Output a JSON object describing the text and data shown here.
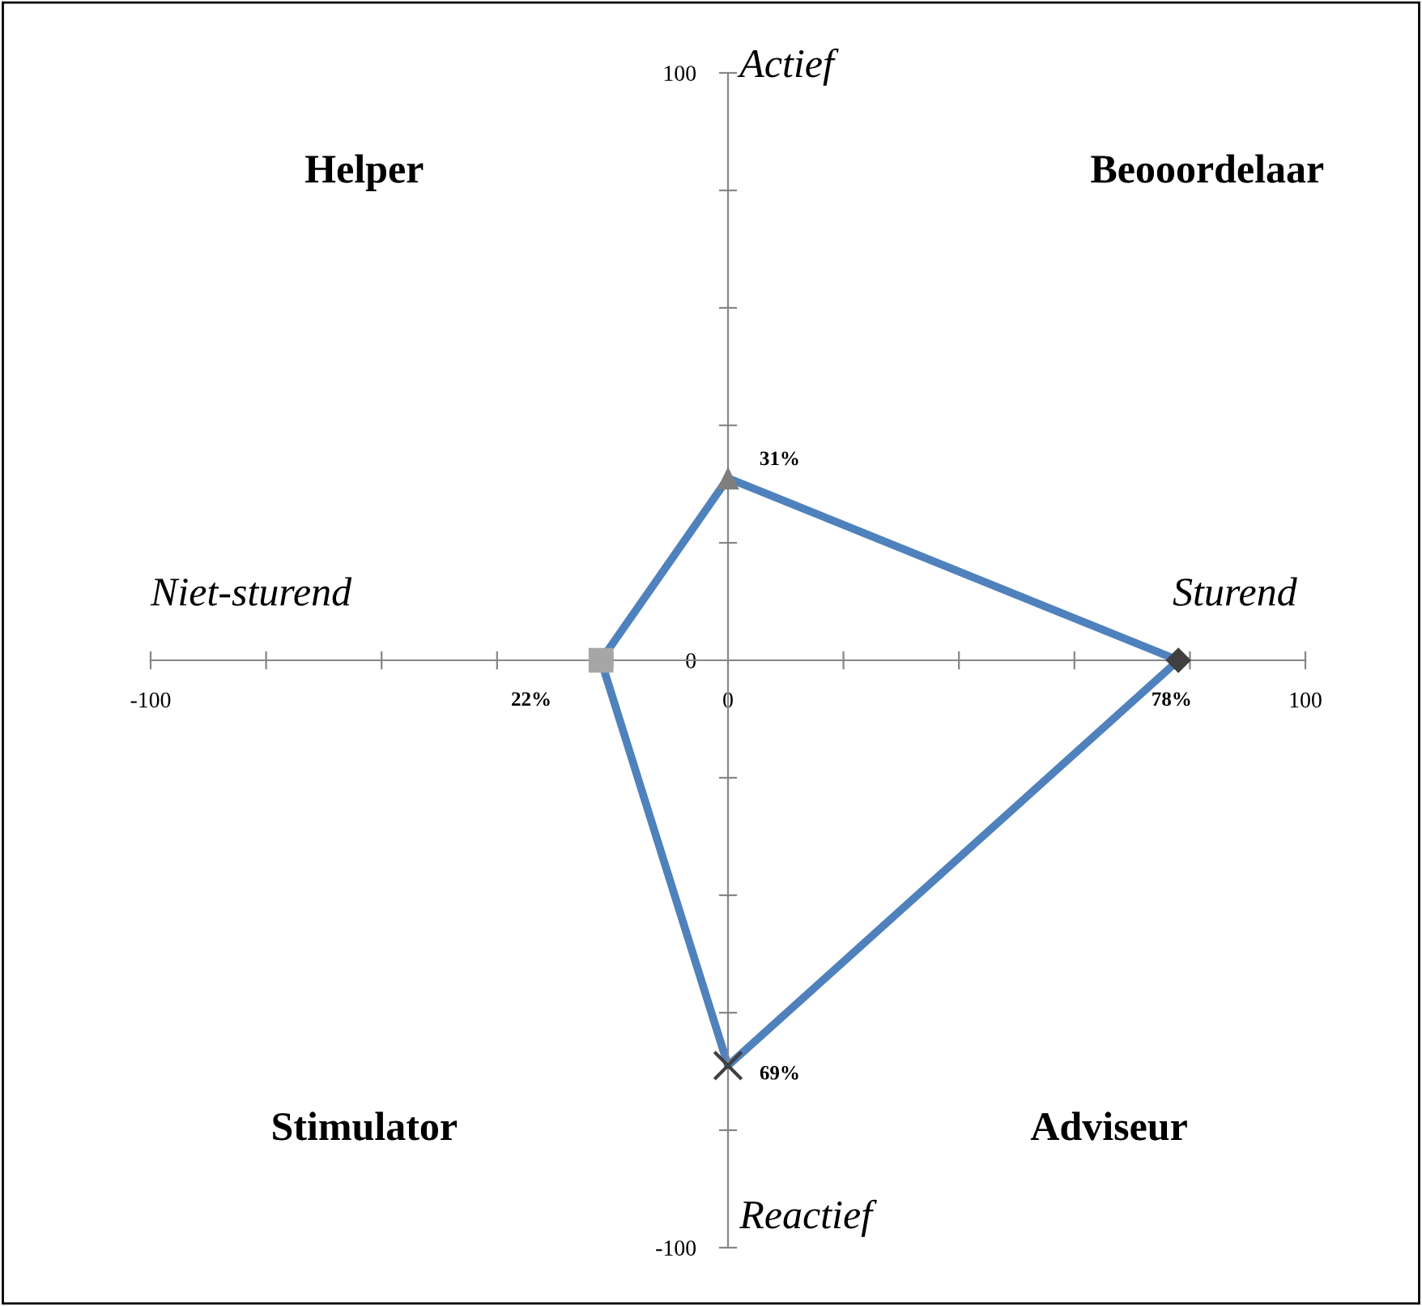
{
  "chart_data": {
    "type": "scatter",
    "xlim": [
      -100,
      100
    ],
    "ylim": [
      -100,
      100
    ],
    "xticks": [
      -100,
      {
        "value": -80,
        "label": null
      },
      {
        "value": -60,
        "label": null
      },
      {
        "value": -40,
        "label": null
      },
      {
        "value": -20,
        "label": null
      },
      0,
      {
        "value": 20,
        "label": null
      },
      {
        "value": 40,
        "label": null
      },
      {
        "value": 60,
        "label": null
      },
      {
        "value": 80,
        "label": null
      },
      100
    ],
    "yticks": [
      -100,
      {
        "value": -80,
        "label": null
      },
      {
        "value": -60,
        "label": null
      },
      {
        "value": -40,
        "label": null
      },
      {
        "value": -20,
        "label": null
      },
      0,
      {
        "value": 20,
        "label": null
      },
      {
        "value": 40,
        "label": null
      },
      {
        "value": 60,
        "label": null
      },
      {
        "value": 80,
        "label": null
      },
      100
    ],
    "grid": false,
    "legend": false,
    "series": [
      {
        "type": "line",
        "color": "#4f81bd",
        "marker": "none",
        "line_style": "solid",
        "x": [
          0,
          78
        ],
        "values": [
          31,
          0
        ]
      },
      {
        "type": "line",
        "color": "#4f81bd",
        "marker": "none",
        "line_style": "solid",
        "x": [
          78,
          0
        ],
        "values": [
          0,
          -69
        ]
      },
      {
        "type": "line",
        "color": "#4f81bd",
        "marker": "none",
        "line_style": "solid",
        "x": [
          0,
          -22
        ],
        "values": [
          -69,
          0
        ]
      },
      {
        "type": "line",
        "color": "#4f81bd",
        "marker": "none",
        "line_style": "solid",
        "x": [
          -22,
          0
        ],
        "values": [
          0,
          31
        ]
      },
      {
        "color": "#7f7f7f",
        "marker": "triangle",
        "x": [
          0
        ],
        "values": [
          31
        ]
      },
      {
        "color": "#404040",
        "marker": "diamond",
        "x": [
          78
        ],
        "values": [
          0
        ]
      },
      {
        "color": "#404040",
        "marker": "cross",
        "x": [
          0
        ],
        "values": [
          -69
        ]
      },
      {
        "color": "#a6a6a6",
        "marker": "square",
        "x": [
          -22
        ],
        "values": [
          0
        ]
      }
    ],
    "annotations": [
      {
        "text": "31%",
        "x": 0,
        "y": 31
      },
      {
        "text": "78%",
        "x": 78,
        "y": 0
      },
      {
        "text": "69%",
        "x": 0,
        "y": -69
      },
      {
        "text": "22%",
        "x": -22,
        "y": 0
      },
      "Helper",
      "Beooordelaar",
      "Stimulator",
      "Adviseur",
      "Actief",
      "Sturend",
      "Reactief",
      "Niet-sturend"
    ]
  }
}
